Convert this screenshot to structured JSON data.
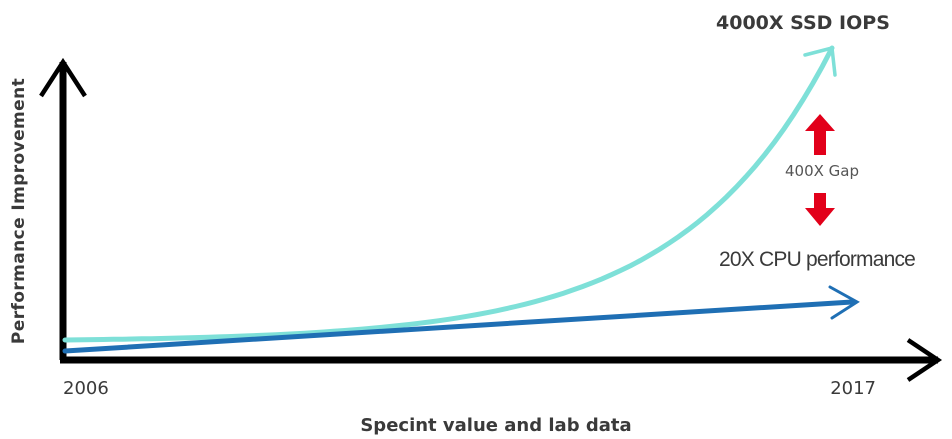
{
  "chart_data": {
    "type": "line",
    "xlabel": "Specint value and lab data",
    "ylabel": "Performance Improvement",
    "x_ticks": [
      "2006",
      "2017"
    ],
    "series": [
      {
        "name": "4000X SSD IOPS",
        "color": "#7ee0d8",
        "start": 1,
        "end": 4000,
        "growth": "exponential"
      },
      {
        "name": "20X CPU performance",
        "color": "#1f6fb4",
        "start": 1,
        "end": 20,
        "growth": "linear"
      }
    ],
    "annotation": {
      "label": "400X Gap",
      "color": "#e2001a"
    },
    "axis_color": "#000000"
  }
}
